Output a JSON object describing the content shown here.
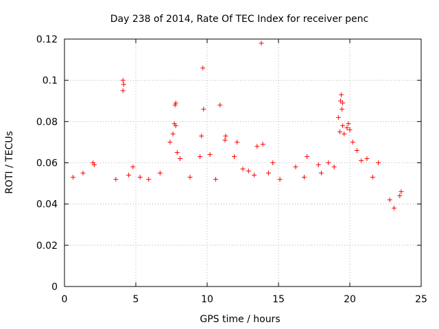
{
  "chart_data": {
    "type": "scatter",
    "title": "Day 238 of 2014, Rate Of TEC Index for receiver penc",
    "xlabel": "GPS time / hours",
    "ylabel": "ROTI / TECUs",
    "xlim": [
      0,
      25
    ],
    "ylim": [
      0,
      0.12
    ],
    "xticks": [
      0,
      5,
      10,
      15,
      20,
      25
    ],
    "xtick_labels": [
      "0",
      "5",
      "10",
      "15",
      "20",
      "25"
    ],
    "yticks": [
      0,
      0.02,
      0.04,
      0.06,
      0.08,
      0.1,
      0.12
    ],
    "ytick_labels": [
      "0",
      "0.02",
      "0.04",
      "0.06",
      "0.08",
      "0.1",
      "0.12"
    ],
    "grid": true,
    "marker": "+",
    "color": "#ff0000",
    "series": [
      {
        "name": "ROTI",
        "points": [
          [
            4.1,
            0.1
          ],
          [
            4.15,
            0.098
          ],
          [
            4.1,
            0.095
          ],
          [
            13.8,
            0.118
          ],
          [
            9.7,
            0.106
          ],
          [
            7.8,
            0.089
          ],
          [
            7.75,
            0.088
          ],
          [
            9.75,
            0.086
          ],
          [
            10.9,
            0.088
          ],
          [
            19.4,
            0.093
          ],
          [
            19.35,
            0.09
          ],
          [
            19.5,
            0.089
          ],
          [
            19.45,
            0.086
          ],
          [
            7.7,
            0.079
          ],
          [
            7.8,
            0.078
          ],
          [
            7.6,
            0.074
          ],
          [
            9.6,
            0.073
          ],
          [
            11.3,
            0.073
          ],
          [
            11.25,
            0.071
          ],
          [
            19.9,
            0.079
          ],
          [
            19.8,
            0.077
          ],
          [
            20.0,
            0.076
          ],
          [
            19.6,
            0.074
          ],
          [
            19.3,
            0.075
          ],
          [
            19.2,
            0.082
          ],
          [
            19.5,
            0.078
          ],
          [
            20.2,
            0.07
          ],
          [
            20.5,
            0.066
          ],
          [
            7.4,
            0.07
          ],
          [
            12.1,
            0.07
          ],
          [
            13.5,
            0.068
          ],
          [
            13.9,
            0.069
          ],
          [
            17.0,
            0.063
          ],
          [
            21.2,
            0.062
          ],
          [
            2.0,
            0.06
          ],
          [
            2.1,
            0.059
          ],
          [
            4.8,
            0.058
          ],
          [
            7.9,
            0.065
          ],
          [
            8.1,
            0.062
          ],
          [
            9.5,
            0.063
          ],
          [
            10.2,
            0.064
          ],
          [
            11.9,
            0.063
          ],
          [
            12.5,
            0.057
          ],
          [
            14.6,
            0.06
          ],
          [
            16.2,
            0.058
          ],
          [
            17.8,
            0.059
          ],
          [
            18.5,
            0.06
          ],
          [
            18.9,
            0.058
          ],
          [
            20.8,
            0.061
          ],
          [
            22.0,
            0.06
          ],
          [
            0.6,
            0.053
          ],
          [
            1.3,
            0.055
          ],
          [
            3.6,
            0.052
          ],
          [
            4.5,
            0.054
          ],
          [
            5.3,
            0.053
          ],
          [
            5.9,
            0.052
          ],
          [
            6.7,
            0.055
          ],
          [
            8.8,
            0.053
          ],
          [
            10.6,
            0.052
          ],
          [
            12.9,
            0.056
          ],
          [
            13.3,
            0.054
          ],
          [
            14.3,
            0.055
          ],
          [
            15.1,
            0.052
          ],
          [
            16.8,
            0.053
          ],
          [
            18.0,
            0.055
          ],
          [
            21.6,
            0.053
          ],
          [
            23.6,
            0.046
          ],
          [
            23.5,
            0.044
          ],
          [
            22.8,
            0.042
          ],
          [
            23.1,
            0.038
          ]
        ]
      }
    ]
  }
}
